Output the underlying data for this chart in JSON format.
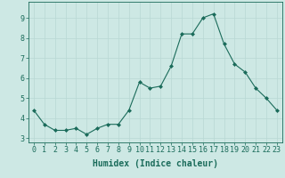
{
  "x": [
    0,
    1,
    2,
    3,
    4,
    5,
    6,
    7,
    8,
    9,
    10,
    11,
    12,
    13,
    14,
    15,
    16,
    17,
    18,
    19,
    20,
    21,
    22,
    23
  ],
  "y": [
    4.4,
    3.7,
    3.4,
    3.4,
    3.5,
    3.2,
    3.5,
    3.7,
    3.7,
    4.4,
    5.8,
    5.5,
    5.6,
    6.6,
    8.2,
    8.2,
    9.0,
    9.2,
    7.7,
    6.7,
    6.3,
    5.5,
    5.0,
    4.4
  ],
  "line_color": "#1a6b5a",
  "marker": "D",
  "marker_size": 2.0,
  "bg_color": "#cde8e4",
  "grid_color": "#b8d8d4",
  "axis_color": "#1a6b5a",
  "xlabel": "Humidex (Indice chaleur)",
  "xlabel_fontsize": 7.0,
  "tick_fontsize": 6.0,
  "ylim": [
    2.8,
    9.8
  ],
  "yticks": [
    3,
    4,
    5,
    6,
    7,
    8,
    9
  ],
  "xlim": [
    -0.5,
    23.5
  ],
  "xticks": [
    0,
    1,
    2,
    3,
    4,
    5,
    6,
    7,
    8,
    9,
    10,
    11,
    12,
    13,
    14,
    15,
    16,
    17,
    18,
    19,
    20,
    21,
    22,
    23
  ],
  "linewidth": 0.8
}
